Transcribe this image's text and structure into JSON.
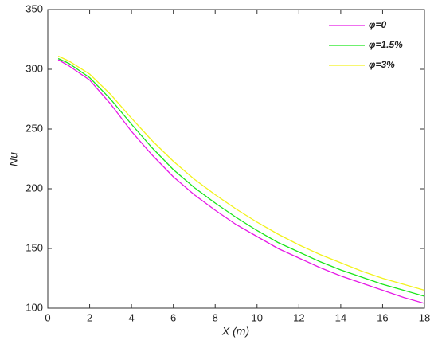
{
  "chart_data": {
    "type": "line",
    "x_label": "X (m)",
    "y_label": "Nu",
    "x": [
      0.5,
      1,
      2,
      3,
      4,
      5,
      6,
      7,
      8,
      9,
      10,
      11,
      12,
      13,
      14,
      15,
      16,
      17,
      18
    ],
    "series": [
      {
        "name": "φ=0",
        "color": "#e619e6",
        "values": [
          308,
          303,
          291,
          271,
          248,
          228,
          210,
          195,
          182,
          170,
          160,
          150,
          142,
          134,
          127,
          121,
          115,
          109,
          104
        ]
      },
      {
        "name": "φ=1.5%",
        "color": "#19e619",
        "values": [
          309,
          305,
          293,
          275,
          254,
          234,
          216,
          201,
          188,
          176,
          165,
          155,
          147,
          139,
          132,
          126,
          120,
          115,
          110
        ]
      },
      {
        "name": "φ=3%",
        "color": "#f2f21a",
        "values": [
          311,
          307,
          296,
          279,
          259,
          240,
          223,
          208,
          195,
          183,
          172,
          162,
          153,
          145,
          138,
          131,
          125,
          120,
          115
        ]
      }
    ],
    "xlim": [
      0,
      18
    ],
    "xticks": [
      0,
      2,
      4,
      6,
      8,
      10,
      12,
      14,
      16,
      18
    ],
    "ylim": [
      100,
      350
    ],
    "yticks": [
      100,
      150,
      200,
      250,
      300,
      350
    ],
    "legend": "upper right",
    "grid": false
  }
}
